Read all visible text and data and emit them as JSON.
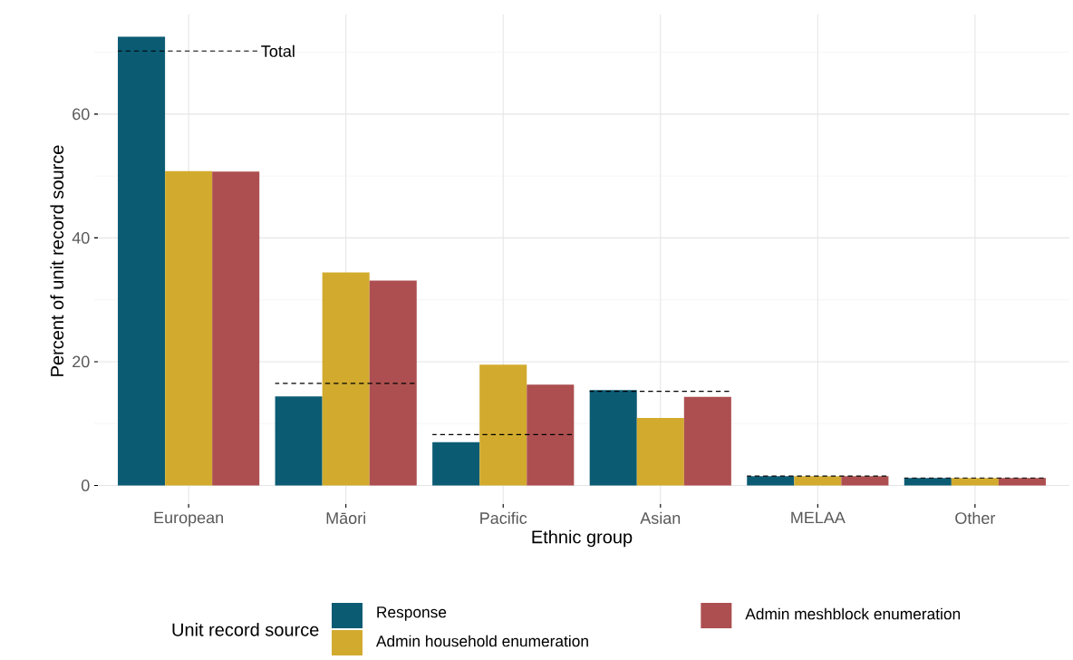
{
  "chart_data": {
    "type": "bar",
    "xlabel": "Ethnic group",
    "ylabel": "Percent of unit record source",
    "legend_title": "Unit record source",
    "categories": [
      "European",
      "Māori",
      "Pacific",
      "Asian",
      "MELAA",
      "Other"
    ],
    "series": [
      {
        "name": "Response",
        "color": "#0b5b73",
        "values": [
          72.5,
          14.4,
          7.0,
          15.4,
          1.5,
          1.2
        ]
      },
      {
        "name": "Admin household enumeration",
        "color": "#d2ab2e",
        "values": [
          50.8,
          34.4,
          19.5,
          10.9,
          1.5,
          1.2
        ]
      },
      {
        "name": "Admin meshblock enumeration",
        "color": "#ad4f50",
        "values": [
          50.7,
          33.1,
          16.3,
          14.3,
          1.5,
          1.2
        ]
      }
    ],
    "ref_lines": [
      {
        "axis": "y",
        "value": 70.2,
        "label": "Total",
        "color": "#000000",
        "line_style": "dashed"
      },
      {
        "axis": "y",
        "value": 16.5,
        "color": "#000000",
        "line_style": "dashed"
      },
      {
        "axis": "y",
        "value": 8.2,
        "color": "#000000",
        "line_style": "dashed"
      },
      {
        "axis": "y",
        "value": 15.2,
        "color": "#000000",
        "line_style": "dashed"
      },
      {
        "axis": "y",
        "value": 1.5,
        "color": "#000000",
        "line_style": "dashed"
      },
      {
        "axis": "y",
        "value": 1.2,
        "color": "#000000",
        "line_style": "dashed"
      }
    ],
    "ylim": [
      -3.6,
      76.1
    ],
    "yticks": [
      0,
      20,
      40,
      60
    ],
    "grid": true,
    "legend": "bottom"
  }
}
